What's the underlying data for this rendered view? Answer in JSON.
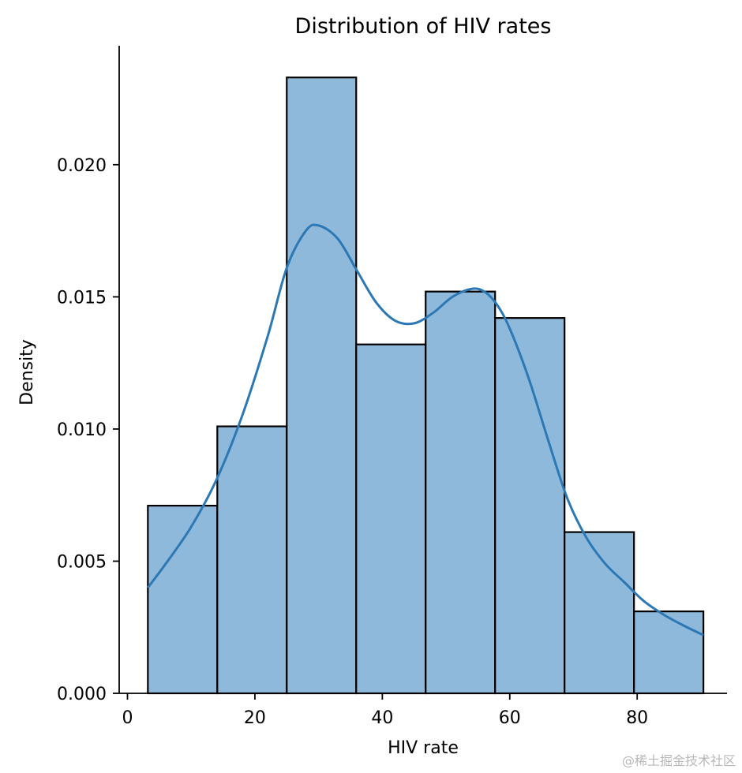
{
  "chart_data": {
    "type": "bar",
    "title": "Distribution of HIV rates",
    "xlabel": "HIV rate",
    "ylabel": "Density",
    "xlim": [
      -1.3,
      94.1
    ],
    "ylim": [
      0,
      0.0245
    ],
    "xticks": [
      0,
      20,
      40,
      60,
      80
    ],
    "xtick_labels": [
      "0",
      "20",
      "40",
      "60",
      "80"
    ],
    "yticks": [
      0,
      0.005,
      0.01,
      0.015,
      0.02
    ],
    "ytick_labels": [
      "0.000",
      "0.005",
      "0.010",
      "0.015",
      "0.020"
    ],
    "bins": [
      {
        "x0": 3.2,
        "x1": 14.1,
        "density": 0.0071
      },
      {
        "x0": 14.1,
        "x1": 25.0,
        "density": 0.0101
      },
      {
        "x0": 25.0,
        "x1": 35.9,
        "density": 0.0233
      },
      {
        "x0": 35.9,
        "x1": 46.8,
        "density": 0.0132
      },
      {
        "x0": 46.8,
        "x1": 57.7,
        "density": 0.0152
      },
      {
        "x0": 57.7,
        "x1": 68.6,
        "density": 0.0142
      },
      {
        "x0": 68.6,
        "x1": 79.5,
        "density": 0.0061
      },
      {
        "x0": 79.5,
        "x1": 90.4,
        "density": 0.0031
      }
    ],
    "kde": {
      "x": [
        3.2,
        6,
        10,
        14,
        18,
        22,
        25,
        28,
        30,
        33,
        36,
        39,
        42,
        45,
        48,
        51,
        54,
        56,
        58,
        60,
        63,
        66,
        69,
        72,
        75,
        78,
        81,
        84,
        87,
        90.4
      ],
      "y": [
        0.004,
        0.0049,
        0.0063,
        0.0081,
        0.0105,
        0.0135,
        0.0161,
        0.0175,
        0.0177,
        0.0172,
        0.016,
        0.0148,
        0.0141,
        0.014,
        0.0144,
        0.015,
        0.0153,
        0.0152,
        0.0147,
        0.0138,
        0.0119,
        0.0096,
        0.0074,
        0.0059,
        0.0049,
        0.0042,
        0.0035,
        0.003,
        0.0026,
        0.0022
      ]
    },
    "colors": {
      "bar_fill": "#8fb9da",
      "bar_edge": "#000000",
      "kde_line": "#2b78b5"
    }
  },
  "watermark": "@稀土掘金技术社区"
}
